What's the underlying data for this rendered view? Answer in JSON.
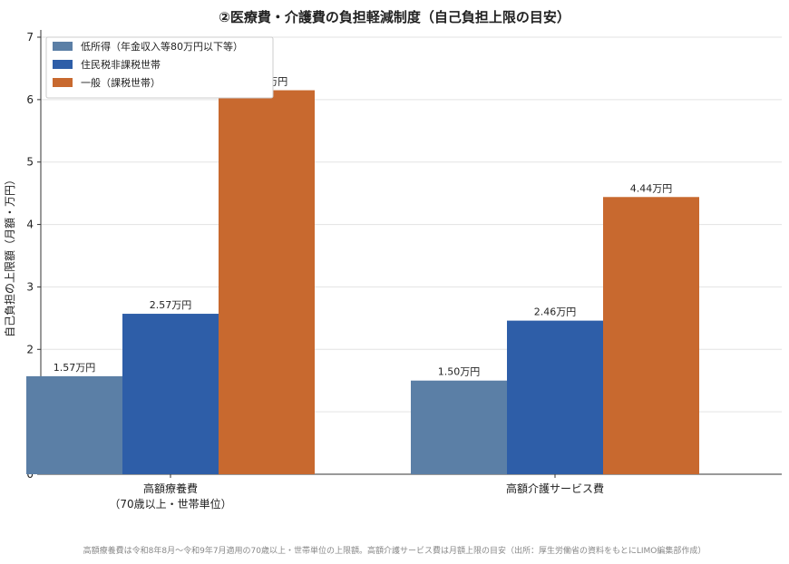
{
  "chart_data": {
    "type": "bar",
    "title": "②医療費・介護費の負担軽減制度（自己負担上限の目安）",
    "ylabel": "自己負担の上限額（月額・万円）",
    "xlabel": "",
    "ylim": [
      0,
      7
    ],
    "yticks": [
      "0",
      "1",
      "2",
      "3",
      "4",
      "5",
      "6",
      "7"
    ],
    "grid": true,
    "legend_position": "top-left",
    "categories": [
      [
        "高額療養費",
        "（70歳以上・世帯単位）"
      ],
      [
        "高額介護サービス費"
      ]
    ],
    "series": [
      {
        "name": "低所得（年金収入等80万円以下等）",
        "color": "#5b7fa6",
        "values": [
          1.57,
          1.5
        ],
        "labels": [
          "1.57万円",
          "1.50万円"
        ]
      },
      {
        "name": "住民税非課税世帯",
        "color": "#2e5ea8",
        "values": [
          2.57,
          2.46
        ],
        "labels": [
          "2.57万円",
          "2.46万円"
        ]
      },
      {
        "name": "一般（課税世帯）",
        "color": "#c8692f",
        "values": [
          6.15,
          4.44
        ],
        "labels": [
          "6.15万円",
          "4.44万円"
        ]
      }
    ]
  },
  "footnote": "高額療養費は令和8年8月〜令和9年7月適用の70歳以上・世帯単位の上限額。高額介護サービス費は月額上限の目安（出所：厚生労働省の資料をもとにLIMO編集部作成）"
}
